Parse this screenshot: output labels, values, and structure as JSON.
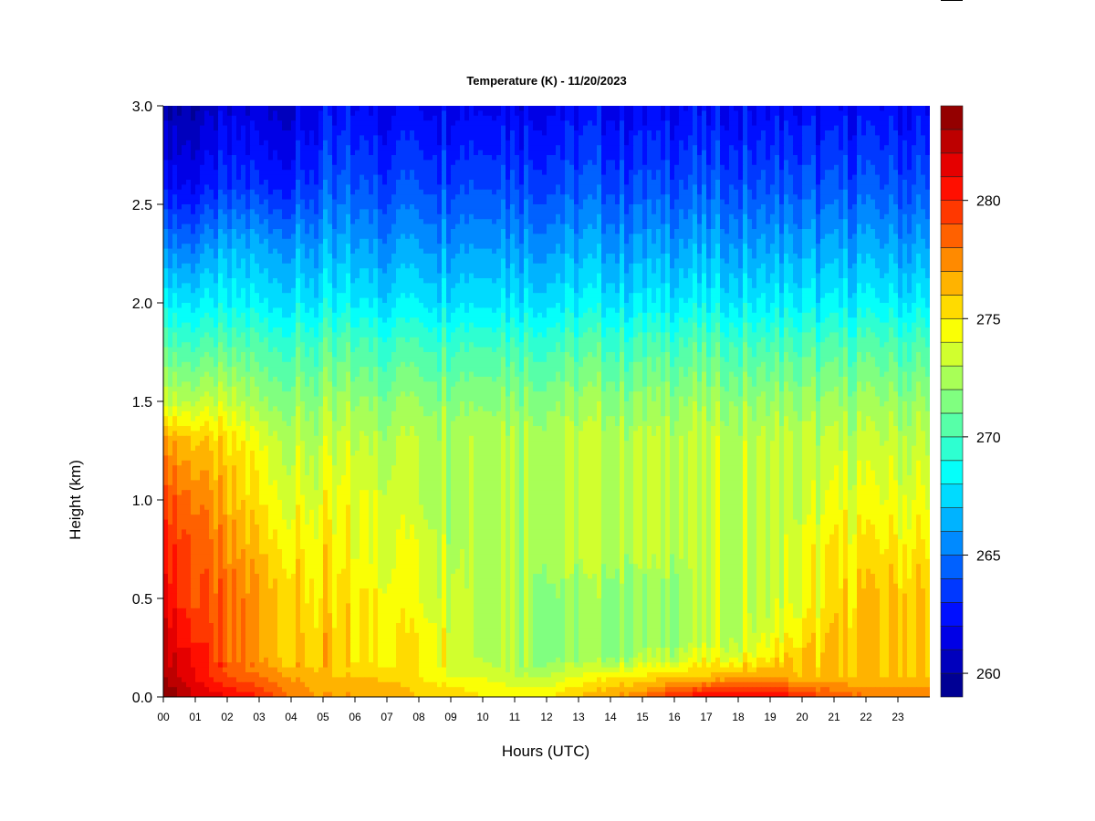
{
  "chart_data": {
    "type": "heatmap",
    "title": "Temperature (K) - 11/20/2023",
    "xlabel": "Hours (UTC)",
    "ylabel": "Height (km)",
    "xlim": [
      0,
      24
    ],
    "ylim": [
      0.0,
      3.0
    ],
    "x_ticks": [
      "00",
      "01",
      "02",
      "03",
      "04",
      "05",
      "06",
      "07",
      "08",
      "09",
      "10",
      "11",
      "12",
      "13",
      "14",
      "15",
      "16",
      "17",
      "18",
      "19",
      "20",
      "21",
      "22",
      "23"
    ],
    "y_ticks": [
      "0.0",
      "0.5",
      "1.0",
      "1.5",
      "2.0",
      "2.5",
      "3.0"
    ],
    "colorbar": {
      "range": [
        259,
        284
      ],
      "ticks": [
        "260",
        "265",
        "270",
        "275",
        "280"
      ],
      "tick_values": [
        260,
        265,
        270,
        275,
        280
      ],
      "levels": 25,
      "colormap": "jet"
    },
    "heights_km": [
      0.0,
      0.1,
      0.2,
      0.3,
      0.5,
      0.75,
      1.0,
      1.3,
      1.5,
      1.8,
      2.0,
      2.3,
      2.6,
      3.0
    ],
    "hours": [
      0,
      1,
      2,
      3,
      4,
      5,
      6,
      7,
      8,
      9,
      10,
      11,
      12,
      13,
      14,
      15,
      16,
      17,
      18,
      19,
      20,
      21,
      22,
      23,
      24
    ],
    "temperature_K": [
      [
        284,
        282,
        281,
        280,
        278,
        277,
        277,
        277,
        276,
        276,
        275,
        275,
        275,
        276,
        277,
        278,
        280,
        281,
        281,
        281,
        280,
        279,
        278,
        278,
        278
      ],
      [
        283,
        281,
        279,
        278,
        277,
        276,
        276,
        276,
        275,
        274,
        274,
        273,
        273,
        274,
        275,
        275,
        276,
        276,
        277,
        277,
        276,
        276,
        276,
        276,
        276
      ],
      [
        282,
        281,
        278,
        277,
        276,
        276,
        275,
        275,
        275,
        274,
        273,
        273,
        272,
        272,
        272,
        273,
        273,
        274,
        274,
        275,
        276,
        276,
        276,
        276,
        276
      ],
      [
        282,
        280,
        278,
        277,
        276,
        276,
        275,
        275,
        275,
        274,
        273,
        273,
        272,
        272,
        272,
        272,
        272,
        273,
        273,
        274,
        275,
        276,
        276,
        276,
        276
      ],
      [
        281,
        279,
        278,
        277,
        276,
        275,
        275,
        275,
        274,
        274,
        273,
        273,
        272,
        272,
        272,
        272,
        272,
        273,
        273,
        273,
        274,
        275,
        276,
        276,
        276
      ],
      [
        280,
        279,
        277,
        276,
        275,
        275,
        274,
        274,
        274,
        273,
        273,
        273,
        273,
        273,
        273,
        273,
        273,
        273,
        273,
        273,
        274,
        275,
        275,
        275,
        275
      ],
      [
        279,
        278,
        276,
        275,
        274,
        274,
        274,
        274,
        273,
        273,
        273,
        273,
        273,
        273,
        273,
        273,
        273,
        273,
        273,
        273,
        273,
        274,
        274,
        274,
        274
      ],
      [
        277,
        276,
        275,
        274,
        273,
        273,
        273,
        273,
        273,
        273,
        273,
        273,
        273,
        273,
        273,
        273,
        273,
        273,
        273,
        273,
        273,
        273,
        273,
        273,
        273
      ],
      [
        273,
        273,
        273,
        272,
        272,
        272,
        272,
        272,
        272,
        272,
        272,
        272,
        272,
        272,
        272,
        272,
        272,
        272,
        272,
        272,
        272,
        272,
        272,
        272,
        272
      ],
      [
        270,
        270,
        270,
        270,
        270,
        270,
        270,
        270,
        270,
        270,
        270,
        270,
        270,
        270,
        270,
        270,
        270,
        270,
        270,
        270,
        270,
        270,
        270,
        270,
        270
      ],
      [
        268,
        268,
        268,
        268,
        268,
        268,
        268,
        268,
        268,
        268,
        268,
        268,
        268,
        268,
        268,
        268,
        268,
        268,
        268,
        268,
        268,
        268,
        268,
        268,
        268
      ],
      [
        265,
        265,
        266,
        266,
        266,
        266,
        266,
        266,
        266,
        266,
        266,
        266,
        266,
        266,
        266,
        266,
        266,
        266,
        266,
        266,
        266,
        266,
        266,
        266,
        266
      ],
      [
        262,
        262,
        263,
        263,
        263,
        264,
        264,
        264,
        264,
        264,
        264,
        264,
        264,
        264,
        264,
        264,
        264,
        264,
        264,
        264,
        264,
        264,
        264,
        264,
        264
      ],
      [
        260,
        260,
        261,
        261,
        261,
        262,
        262,
        262,
        262,
        262,
        262,
        262,
        262,
        262,
        262,
        262,
        262,
        262,
        262,
        262,
        262,
        262,
        262,
        262,
        262
      ]
    ],
    "grid": false,
    "legend": "colorbar-right"
  }
}
